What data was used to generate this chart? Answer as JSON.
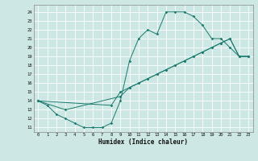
{
  "xlabel": "Humidex (Indice chaleur)",
  "xlim": [
    -0.5,
    23.5
  ],
  "ylim": [
    10.5,
    24.8
  ],
  "yticks": [
    11,
    12,
    13,
    14,
    15,
    16,
    17,
    18,
    19,
    20,
    21,
    22,
    23,
    24
  ],
  "xticks": [
    0,
    1,
    2,
    3,
    4,
    5,
    6,
    7,
    8,
    9,
    10,
    11,
    12,
    13,
    14,
    15,
    16,
    17,
    18,
    19,
    20,
    21,
    22,
    23
  ],
  "line_color": "#1a7a6e",
  "markersize": 1.8,
  "background_color": "#cde8e4",
  "grid_color": "#ffffff",
  "curve1_x": [
    0,
    1,
    2,
    3,
    4,
    5,
    6,
    7,
    8,
    9,
    10,
    11,
    12,
    13,
    14,
    15,
    16,
    17,
    18,
    19,
    20,
    21,
    22,
    23
  ],
  "curve1_y": [
    14,
    13.5,
    12.5,
    12,
    11.5,
    11,
    11,
    11,
    11.5,
    14,
    18.5,
    21,
    22,
    21.5,
    24,
    24,
    24,
    23.5,
    22.5,
    21,
    21,
    20,
    19,
    19
  ],
  "curve2_x": [
    0,
    3,
    9,
    10,
    11,
    12,
    13,
    14,
    15,
    16,
    17,
    18,
    19,
    20,
    21,
    22,
    23
  ],
  "curve2_y": [
    14,
    13,
    14.5,
    15.5,
    16,
    16.5,
    17,
    17.5,
    18,
    18.5,
    19,
    19.5,
    20,
    20.5,
    21,
    19,
    19
  ],
  "curve3_x": [
    0,
    8,
    9,
    10,
    11,
    12,
    13,
    14,
    15,
    16,
    17,
    18,
    19,
    20,
    21,
    22,
    23
  ],
  "curve3_y": [
    14,
    13.5,
    15,
    15.5,
    16,
    16.5,
    17,
    17.5,
    18,
    18.5,
    19,
    19.5,
    20,
    20.5,
    21,
    19,
    19
  ]
}
